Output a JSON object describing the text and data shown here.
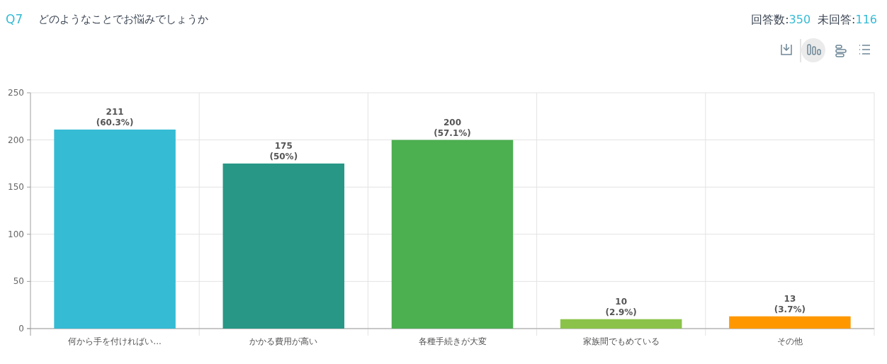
{
  "chart_data": {
    "type": "bar",
    "title": "どのようなことでお悩みでしょうか",
    "annotations": [
      "Q7",
      "回答数:350",
      "未回答:116"
    ],
    "categories": [
      "何から手を付ければい...",
      "かかる費用が高い",
      "各種手続きが大変",
      "家族間でもめている",
      "その他"
    ],
    "values": [
      211,
      175,
      200,
      10,
      13
    ],
    "colors": [
      "#35bbd4",
      "#289786",
      "#4caf50",
      "#8bc34a",
      "#ff9800"
    ],
    "value_labels": [
      "211\n(60.3%)",
      "175\n(50%)",
      "200\n(57.1%)",
      "10\n(2.9%)",
      "13\n(3.7%)"
    ],
    "ylim": [
      0,
      250
    ],
    "yticks": [
      0,
      50,
      100,
      150,
      200,
      250
    ],
    "grid": true
  }
}
